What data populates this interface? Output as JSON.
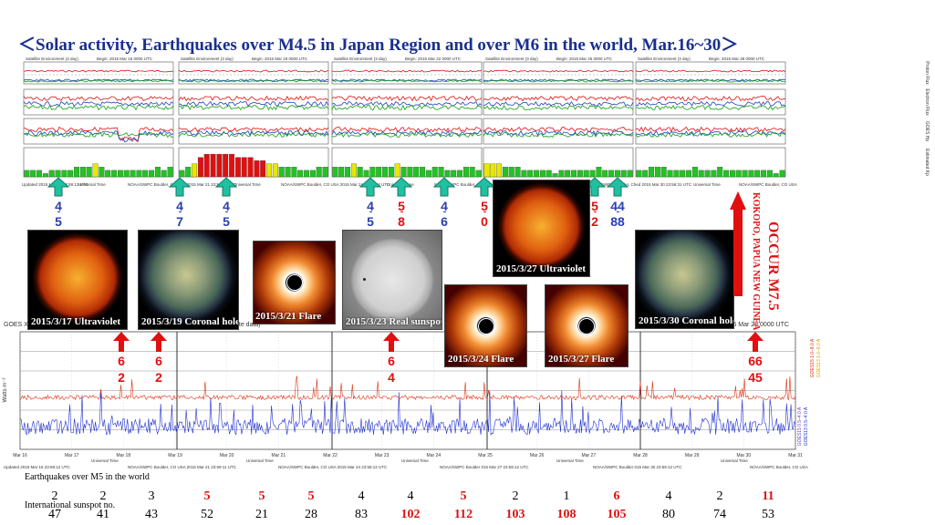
{
  "title": "＜Solar activity, Earthquakes over M4.5 in Japan Region and over M6 in the world, Mar.16~30＞",
  "colors": {
    "title": "#1a2f8f",
    "high": "#e01010",
    "normal": "#2a3fb0",
    "kp_green": "#22c422",
    "kp_yellow": "#e8e800",
    "kp_red": "#e01010"
  },
  "top_panel": {
    "headers": [
      "Satellite Environment (3 day)",
      "Begin: 2015 Mar 16 0000 UTC",
      "Satellite Environment (3 day)",
      "Begin: 2015 Mar 19 0000 UTC",
      "Satellite Environment (3 day)",
      "Begin: 2015 Mar 22 0000 UTC",
      "Satellite Environment (3 day)",
      "Begin: 2015 Mar 25 0000 UTC",
      "Satellite Environment (3 day)",
      "Begin: 2015 Mar 28 0000 UTC"
    ],
    "footers": [
      "Updated 2015 Mar 18 23:59:12 UTC",
      "Universal Time",
      "NOAA/SWPC Boulder, CO USA 2015 Mar 21 23:56:13 UTC",
      "Universal Time",
      "NOAA/SWPC Boulder, CO USA 2015 Mar 24 23:59:13 UTC",
      "Universal Time",
      "NOAA/SWPC Boulder, Ched 2015 Mar 27 23:59:12 UTC",
      "Universal Time",
      "NOAA/SWPC Boulder, Ched 2015 Mar 30 23:56:31 UTC",
      "Universal Time",
      "NOAA/SWPC Boulder, CO USA"
    ],
    "side_labels": [
      "Proton Flux",
      "Electron Flux",
      "GOES Hp",
      "Estimated Kp"
    ]
  },
  "kp_arrows": [
    {
      "top": "4",
      "bottom": "5",
      "top_high": false,
      "bottom_high": false
    },
    {
      "top": "4",
      "bottom": "7",
      "top_high": false,
      "bottom_high": false
    },
    {
      "top": "4",
      "bottom": "5",
      "top_high": false,
      "bottom_high": false
    },
    {
      "top": "4",
      "bottom": "5",
      "top_high": false,
      "bottom_high": false
    },
    {
      "top": "5",
      "bottom": "8",
      "top_high": true,
      "bottom_high": true
    },
    {
      "top": "4",
      "bottom": "6",
      "top_high": false,
      "bottom_high": false
    },
    {
      "top": "5",
      "bottom": "0",
      "top_high": true,
      "bottom_high": true
    },
    {
      "top": "5",
      "bottom": "2",
      "top_high": true,
      "bottom_high": true
    },
    {
      "top": "44",
      "bottom": "88",
      "top_high": false,
      "bottom_high": false
    }
  ],
  "photos": [
    {
      "caption": "2015/3/17 Ultraviolet",
      "kind": "sun-uv"
    },
    {
      "caption": "2015/3/19 Coronal hole",
      "kind": "sun-ch"
    },
    {
      "caption": "2015/3/21 Flare",
      "kind": "cme"
    },
    {
      "caption": "2015/3/23 Real sunspot",
      "kind": "white"
    },
    {
      "caption": "2015/3/27 Ultraviolet",
      "kind": "sun-uv"
    },
    {
      "caption": "2015/3/24 Flare",
      "kind": "cme"
    },
    {
      "caption": "2015/3/27  Flare",
      "kind": "cme"
    },
    {
      "caption": "2015/3/30 Coronal hole",
      "kind": "sun-ch"
    }
  ],
  "occur": {
    "line1": "OCCUR M7.5",
    "line2": "KOKOPO, PAPUA NEW GUINEA"
  },
  "xray_arrows": [
    {
      "top": "6",
      "bottom": "2"
    },
    {
      "top": "6",
      "bottom": "2"
    },
    {
      "top": "6",
      "bottom": "4"
    },
    {
      "top": "66",
      "bottom": "45"
    }
  ],
  "bottom_panel": {
    "header_left": "GOES X",
    "header_mid": "ute data)",
    "header_right": "Begin: 2015 Mar 28 0000 UTC",
    "y_axis_label": "Watts m⁻²",
    "right_labels": [
      "GOES15 0.5–4.0 A",
      "GOES13 0.5–4.0 A",
      "GOES15 1.0–8.0 A",
      "GOES13 1.0–8.0 A"
    ],
    "x_labels": [
      "Mar 16",
      "Mar 17",
      "Mar 18",
      "Mar 19",
      "Mar 20",
      "Mar 21",
      "Mar 22",
      "Mar 23",
      "Mar 24",
      "Mar 25",
      "Mar 26",
      "Mar 27",
      "Mar 28",
      "Mar 29",
      "Mar 30",
      "Mar 31"
    ],
    "footer": [
      "Updated 2015 Mar 18 23:59:12 UTC",
      "NOAA/SWPC Boulder, CO USA 2015 Mar 21 23:59:11 UTC",
      "NOAA/SWPC Boulder, CO USA 2015 Mar 24 23:59:12 UTC",
      "NOAA/SWPC Boulder 015 Mar 27 23:59:12 UTC",
      "NOAA/SWPC Boulder 015 Mar 30 23:59:12 UTC",
      "NOAA/SWPC Boulder, CO USA"
    ],
    "universal_time": "Universal Time"
  },
  "chart_data": {
    "type": "table",
    "rows": [
      {
        "name": "Earthquakes over M5 in the world",
        "values": [
          2,
          2,
          3,
          5,
          5,
          5,
          4,
          4,
          5,
          2,
          1,
          6,
          4,
          2,
          11
        ],
        "highlight": [
          false,
          false,
          false,
          true,
          true,
          true,
          false,
          false,
          true,
          false,
          false,
          true,
          false,
          false,
          true
        ]
      },
      {
        "name": "International sunspot no.",
        "values": [
          47,
          41,
          43,
          52,
          21,
          28,
          83,
          102,
          112,
          103,
          108,
          105,
          80,
          74,
          53
        ],
        "highlight": [
          false,
          false,
          false,
          false,
          false,
          false,
          false,
          true,
          true,
          true,
          true,
          true,
          false,
          false,
          false
        ]
      }
    ],
    "kp_bars": [
      [
        2,
        2,
        2,
        1,
        2,
        2,
        2,
        2
      ],
      [
        3,
        3,
        3,
        4,
        3,
        2,
        2,
        2
      ],
      [
        2,
        2,
        2,
        2,
        2,
        3,
        2,
        3
      ],
      [
        2,
        3,
        4,
        6,
        7,
        7,
        7,
        7
      ],
      [
        7,
        6,
        6,
        6,
        5,
        5,
        4,
        4
      ],
      [
        3,
        3,
        3,
        2,
        2,
        2,
        3,
        3
      ],
      [
        3,
        3,
        3,
        4,
        3,
        2,
        3,
        3
      ],
      [
        3,
        3,
        4,
        3,
        3,
        3,
        3,
        2
      ],
      [
        3,
        3,
        2,
        2,
        2,
        3,
        3,
        2
      ],
      [
        4,
        4,
        4,
        3,
        3,
        3,
        2,
        2
      ],
      [
        2,
        2,
        2,
        1,
        2,
        2,
        2,
        2
      ],
      [
        2,
        2,
        3,
        2,
        2,
        2,
        2,
        2
      ],
      [
        2,
        2,
        3,
        3,
        3,
        2,
        2,
        2
      ],
      [
        2,
        3,
        2,
        2,
        2,
        3,
        2,
        2
      ],
      [
        2,
        2,
        2,
        2,
        2,
        2,
        1,
        2
      ]
    ]
  }
}
